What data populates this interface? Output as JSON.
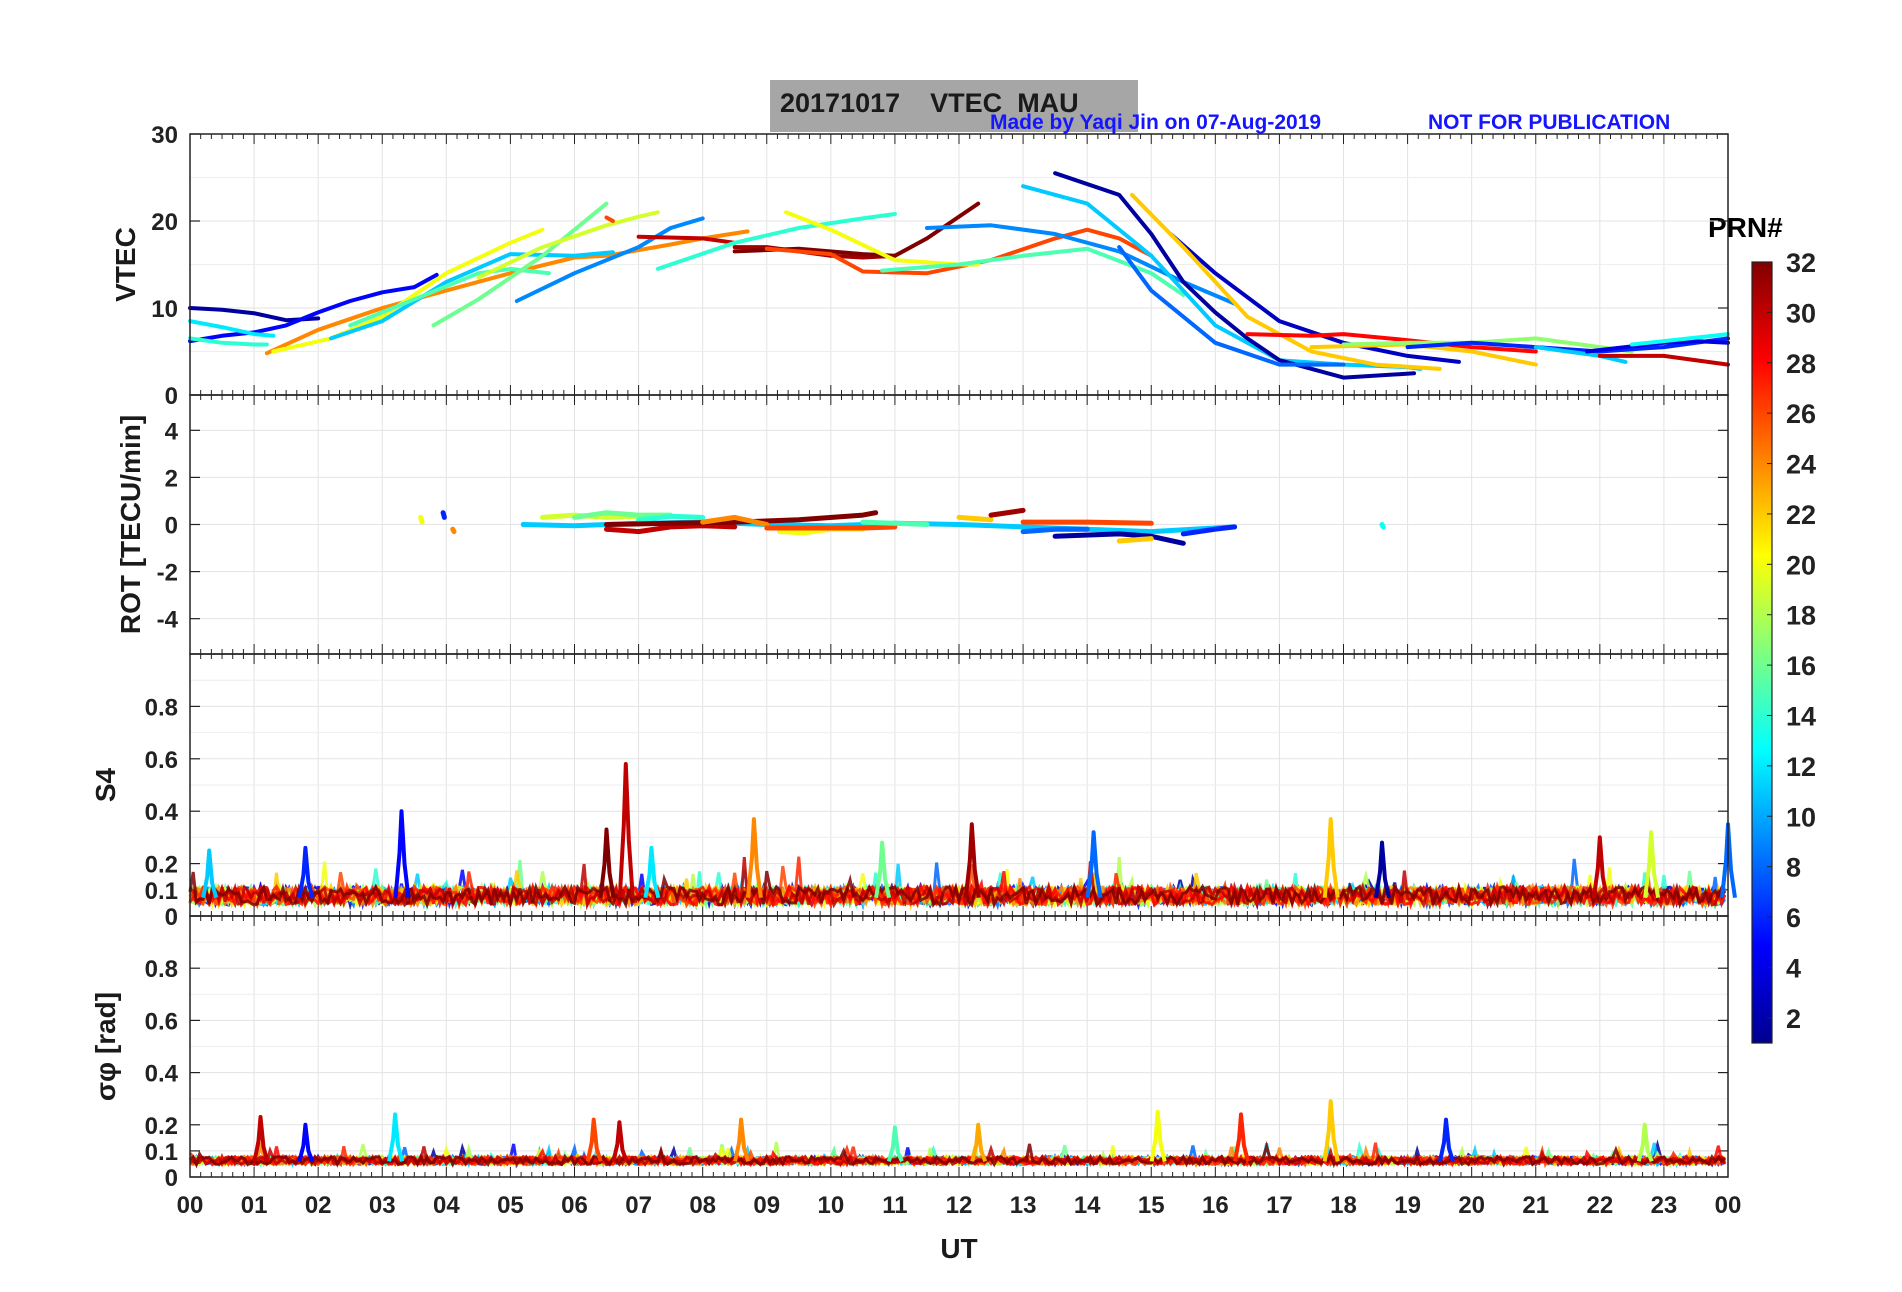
{
  "title": {
    "date": "20171017",
    "product": "VTEC",
    "station": "MAU",
    "credit": "Made by Yaqi Jin on 07-Aug-2019",
    "notice": "NOT FOR PUBLICATION"
  },
  "colorbar": {
    "label": "PRN#",
    "range": [
      1,
      32
    ],
    "ticks": [
      "2",
      "4",
      "6",
      "8",
      "10",
      "12",
      "14",
      "16",
      "18",
      "20",
      "22",
      "24",
      "26",
      "28",
      "30",
      "32"
    ]
  },
  "chart_data": [
    {
      "type": "line",
      "panel": "vtec",
      "ylabel": "VTEC",
      "ylim": [
        0,
        30
      ],
      "yticks": [
        "0",
        "10",
        "20",
        "30"
      ],
      "xlim": [
        0,
        24
      ],
      "series": [
        {
          "prn": 2,
          "x": [
            0.0,
            0.5,
            1.0,
            1.5,
            2.0
          ],
          "y": [
            10.0,
            9.8,
            9.4,
            8.6,
            8.8
          ]
        },
        {
          "prn": 5,
          "x": [
            0.0,
            0.5,
            1.0,
            1.5,
            2.0,
            2.5,
            3.0,
            3.5,
            3.85
          ],
          "y": [
            6.2,
            6.8,
            7.2,
            8.0,
            9.5,
            10.8,
            11.8,
            12.4,
            13.8
          ]
        },
        {
          "prn": 12,
          "x": [
            0.0,
            0.5,
            1.0,
            1.3
          ],
          "y": [
            8.5,
            7.8,
            7.0,
            6.8
          ]
        },
        {
          "prn": 14,
          "x": [
            0.0,
            0.5,
            1.0,
            1.2
          ],
          "y": [
            6.5,
            6.0,
            5.8,
            5.8
          ]
        },
        {
          "prn": 24,
          "x": [
            1.2,
            2.0,
            3.0,
            4.0,
            5.0,
            6.0,
            6.5,
            7.5,
            8.0,
            8.7
          ],
          "y": [
            4.8,
            7.5,
            10.0,
            12.0,
            14.0,
            15.8,
            16.0,
            17.3,
            18.0,
            18.8
          ]
        },
        {
          "prn": 20,
          "x": [
            1.3,
            2.2,
            3.0,
            4.0,
            5.0,
            5.5
          ],
          "y": [
            5.0,
            6.5,
            9.0,
            14.0,
            17.5,
            19.0
          ]
        },
        {
          "prn": 11,
          "x": [
            2.2,
            3.0,
            4.0,
            5.0,
            6.0,
            6.6
          ],
          "y": [
            6.5,
            8.5,
            13.0,
            16.2,
            16.0,
            16.4
          ]
        },
        {
          "prn": 15,
          "x": [
            2.5,
            3.5,
            4.5,
            5.0,
            5.6
          ],
          "y": [
            8.0,
            11.0,
            14.0,
            14.5,
            14.0
          ]
        },
        {
          "prn": 16,
          "x": [
            3.8,
            4.5,
            5.5,
            6.5
          ],
          "y": [
            8.0,
            11.0,
            16.0,
            22.0
          ]
        },
        {
          "prn": 19,
          "x": [
            4.5,
            5.5,
            6.5,
            7.0,
            7.3
          ],
          "y": [
            13.5,
            17.0,
            19.5,
            20.5,
            21.0
          ]
        },
        {
          "prn": 9,
          "x": [
            5.1,
            6.0,
            7.0,
            7.5,
            8.0
          ],
          "y": [
            10.8,
            14.0,
            17.0,
            19.2,
            20.3
          ]
        },
        {
          "prn": 26,
          "x": [
            6.5,
            6.6
          ],
          "y": [
            20.4,
            20.0
          ]
        },
        {
          "prn": 30,
          "x": [
            7.0,
            8.0,
            8.5
          ],
          "y": [
            18.2,
            18.0,
            17.5
          ]
        },
        {
          "prn": 14,
          "x": [
            7.3,
            8.5,
            9.5,
            10.5,
            11.0
          ],
          "y": [
            14.5,
            17.5,
            19.2,
            20.3,
            20.8
          ]
        },
        {
          "prn": 31,
          "x": [
            8.5,
            9.0,
            9.5,
            10.0,
            10.5,
            11.0
          ],
          "y": [
            17.0,
            17.0,
            16.5,
            16.0,
            15.8,
            16.0
          ]
        },
        {
          "prn": 32,
          "x": [
            8.5,
            9.5,
            10.5,
            11.0,
            11.5,
            12.3
          ],
          "y": [
            16.5,
            16.8,
            16.2,
            16.0,
            18.0,
            22.0
          ]
        },
        {
          "prn": 26,
          "x": [
            9.0,
            10.0,
            10.5,
            11.5,
            12.5,
            13.5,
            14.0,
            14.5,
            15.0
          ],
          "y": [
            16.8,
            16.2,
            14.2,
            14.0,
            15.5,
            18.0,
            19.0,
            18.0,
            16.0
          ]
        },
        {
          "prn": 20,
          "x": [
            9.3,
            10.0,
            11.0,
            12.0,
            12.3
          ],
          "y": [
            21.0,
            19.0,
            15.5,
            15.0,
            15.0
          ]
        },
        {
          "prn": 15,
          "x": [
            10.8,
            12.0,
            13.0,
            14.0,
            15.0,
            15.5
          ],
          "y": [
            14.3,
            15.0,
            16.0,
            16.8,
            14.0,
            11.5
          ]
        },
        {
          "prn": 9,
          "x": [
            11.5,
            12.5,
            13.5,
            14.5,
            15.5,
            16.3
          ],
          "y": [
            19.2,
            19.5,
            18.5,
            16.5,
            13.0,
            10.5
          ]
        },
        {
          "prn": 11,
          "x": [
            13.0,
            14.0,
            15.0,
            16.0,
            17.0,
            18.0,
            19.0,
            19.2
          ],
          "y": [
            24.0,
            22.0,
            16.0,
            8.0,
            4.0,
            3.5,
            3.2,
            3.0
          ]
        },
        {
          "prn": 2,
          "x": [
            13.5,
            14.5,
            15.0,
            15.5,
            16.0,
            16.5,
            17.0,
            18.0,
            19.1
          ],
          "y": [
            25.5,
            23.0,
            18.5,
            13.0,
            9.5,
            6.5,
            4.0,
            2.0,
            2.5
          ]
        },
        {
          "prn": 8,
          "x": [
            14.5,
            15.0,
            16.0,
            17.0,
            18.0
          ],
          "y": [
            17.0,
            12.0,
            6.0,
            3.5,
            3.5
          ]
        },
        {
          "prn": 3,
          "x": [
            15.3,
            16.0,
            17.0,
            18.0,
            19.0,
            19.8
          ],
          "y": [
            18.5,
            14.0,
            8.5,
            6.0,
            4.5,
            3.8
          ]
        },
        {
          "prn": 22,
          "x": [
            14.7,
            15.5,
            16.5,
            17.5,
            18.5,
            19.5
          ],
          "y": [
            23.0,
            17.0,
            9.0,
            5.0,
            3.5,
            3.0
          ]
        },
        {
          "prn": 28,
          "x": [
            16.5,
            17.5,
            18.0,
            19.0,
            20.0,
            21.0
          ],
          "y": [
            7.0,
            6.8,
            7.0,
            6.3,
            5.5,
            5.0
          ]
        },
        {
          "prn": 22,
          "x": [
            17.5,
            19.0,
            20.0,
            21.0
          ],
          "y": [
            5.5,
            5.8,
            5.0,
            3.5
          ]
        },
        {
          "prn": 17,
          "x": [
            18.0,
            19.0,
            20.0,
            21.0,
            22.0,
            22.5
          ],
          "y": [
            5.8,
            6.0,
            6.0,
            6.5,
            5.5,
            5.0
          ]
        },
        {
          "prn": 6,
          "x": [
            19.0,
            20.0,
            21.0,
            22.0,
            23.0,
            24.0
          ],
          "y": [
            5.5,
            6.0,
            5.5,
            5.0,
            5.5,
            6.5
          ]
        },
        {
          "prn": 11,
          "x": [
            21.0,
            22.0,
            22.4
          ],
          "y": [
            5.5,
            4.5,
            3.8
          ]
        },
        {
          "prn": 4,
          "x": [
            21.8,
            22.5,
            23.0,
            23.5,
            24.0
          ],
          "y": [
            5.0,
            5.6,
            6.0,
            6.2,
            6.0
          ]
        },
        {
          "prn": 30,
          "x": [
            22.0,
            23.0,
            24.0
          ],
          "y": [
            4.5,
            4.5,
            3.5
          ]
        },
        {
          "prn": 13,
          "x": [
            22.5,
            23.0,
            24.0
          ],
          "y": [
            5.8,
            6.2,
            7.0
          ]
        }
      ]
    },
    {
      "type": "line",
      "panel": "rot",
      "ylabel": "ROT [TECU/min]",
      "ylim": [
        -5.5,
        5.5
      ],
      "yticks": [
        "-4",
        "-2",
        "0",
        "2",
        "4"
      ],
      "xlim": [
        0,
        24
      ],
      "series": [
        {
          "prn": 20,
          "x": [
            3.6,
            3.62
          ],
          "y": [
            0.3,
            0.1
          ]
        },
        {
          "prn": 6,
          "x": [
            3.95,
            3.97
          ],
          "y": [
            0.5,
            0.3
          ]
        },
        {
          "prn": 24,
          "x": [
            4.1,
            4.12
          ],
          "y": [
            -0.2,
            -0.3
          ]
        },
        {
          "prn": 11,
          "x": [
            5.2,
            6.0,
            7.0,
            8.0,
            9.0,
            10.0,
            11.0,
            12.0,
            13.0,
            14.0,
            15.0,
            16.3
          ],
          "y": [
            0.0,
            -0.05,
            0.05,
            0.1,
            0.0,
            -0.05,
            0.05,
            0.0,
            -0.1,
            -0.2,
            -0.3,
            -0.1
          ]
        },
        {
          "prn": 19,
          "x": [
            5.5,
            6.0,
            6.5,
            7.0
          ],
          "y": [
            0.3,
            0.4,
            0.3,
            0.35
          ]
        },
        {
          "prn": 16,
          "x": [
            6.0,
            6.5,
            7.0,
            7.5
          ],
          "y": [
            0.3,
            0.5,
            0.4,
            0.4
          ]
        },
        {
          "prn": 14,
          "x": [
            7.0,
            7.5,
            8.0
          ],
          "y": [
            0.2,
            0.35,
            0.3
          ]
        },
        {
          "prn": 30,
          "x": [
            6.5,
            7.0,
            7.5,
            8.0,
            8.5
          ],
          "y": [
            -0.2,
            -0.3,
            -0.1,
            -0.05,
            -0.1
          ]
        },
        {
          "prn": 32,
          "x": [
            6.5,
            7.5,
            8.5,
            9.5,
            10.5,
            10.7
          ],
          "y": [
            0.0,
            0.05,
            0.1,
            0.2,
            0.4,
            0.5
          ]
        },
        {
          "prn": 24,
          "x": [
            8.0,
            8.5,
            9.0
          ],
          "y": [
            0.1,
            0.3,
            0.0
          ]
        },
        {
          "prn": 20,
          "x": [
            9.2,
            9.6,
            10.0,
            10.5
          ],
          "y": [
            -0.3,
            -0.35,
            -0.2,
            -0.2
          ]
        },
        {
          "prn": 26,
          "x": [
            9.0,
            10.0,
            10.5,
            11.0
          ],
          "y": [
            -0.15,
            -0.15,
            -0.15,
            -0.1
          ]
        },
        {
          "prn": 15,
          "x": [
            10.5,
            11.0,
            11.5
          ],
          "y": [
            0.1,
            0.05,
            0.0
          ]
        },
        {
          "prn": 22,
          "x": [
            12.0,
            12.5
          ],
          "y": [
            0.3,
            0.2
          ]
        },
        {
          "prn": 31,
          "x": [
            12.5,
            13.0
          ],
          "y": [
            0.4,
            0.6
          ]
        },
        {
          "prn": 8,
          "x": [
            13.0,
            13.5,
            14.0
          ],
          "y": [
            -0.3,
            -0.2,
            -0.2
          ]
        },
        {
          "prn": 26,
          "x": [
            13.0,
            14.0,
            15.0
          ],
          "y": [
            0.1,
            0.1,
            0.05
          ]
        },
        {
          "prn": 2,
          "x": [
            13.5,
            14.5,
            15.0,
            15.5
          ],
          "y": [
            -0.5,
            -0.4,
            -0.5,
            -0.8
          ]
        },
        {
          "prn": 22,
          "x": [
            14.5,
            15.0
          ],
          "y": [
            -0.7,
            -0.6
          ]
        },
        {
          "prn": 6,
          "x": [
            15.5,
            16.0,
            16.3
          ],
          "y": [
            -0.4,
            -0.2,
            -0.1
          ]
        },
        {
          "prn": 13,
          "x": [
            18.6,
            18.62
          ],
          "y": [
            0.0,
            -0.1
          ]
        }
      ]
    },
    {
      "type": "line",
      "panel": "s4",
      "ylabel": "S4",
      "ylim": [
        0,
        1.0
      ],
      "yticks": [
        "0",
        "0.1",
        "0.2",
        "0.4",
        "0.6",
        "0.8"
      ],
      "xlim": [
        0,
        24
      ],
      "notes": "noisy multi-PRN series; baseline ~0.05-0.1 with spikes",
      "peaks": [
        {
          "prn": 30,
          "x": 6.8,
          "y": 0.58
        },
        {
          "prn": 5,
          "x": 3.3,
          "y": 0.4
        },
        {
          "prn": 24,
          "x": 8.8,
          "y": 0.37
        },
        {
          "prn": 22,
          "x": 17.8,
          "y": 0.37
        },
        {
          "prn": 31,
          "x": 12.2,
          "y": 0.35
        },
        {
          "prn": 8,
          "x": 24.0,
          "y": 0.35
        },
        {
          "prn": 32,
          "x": 6.5,
          "y": 0.33
        },
        {
          "prn": 8,
          "x": 14.1,
          "y": 0.32
        },
        {
          "prn": 19,
          "x": 22.8,
          "y": 0.32
        },
        {
          "prn": 30,
          "x": 22.0,
          "y": 0.3
        },
        {
          "prn": 16,
          "x": 10.8,
          "y": 0.28
        },
        {
          "prn": 12,
          "x": 7.2,
          "y": 0.26
        },
        {
          "prn": 2,
          "x": 18.6,
          "y": 0.28
        },
        {
          "prn": 6,
          "x": 1.8,
          "y": 0.26
        },
        {
          "prn": 11,
          "x": 0.3,
          "y": 0.25
        }
      ]
    },
    {
      "type": "line",
      "panel": "sigma_phi",
      "ylabel": "σφ [rad]",
      "ylim": [
        0,
        1.0
      ],
      "yticks": [
        "0",
        "0.1",
        "0.2",
        "0.4",
        "0.6",
        "0.8"
      ],
      "xlim": [
        0,
        24
      ],
      "xlabel": "UT",
      "xticks": [
        "00",
        "01",
        "02",
        "03",
        "04",
        "05",
        "06",
        "07",
        "08",
        "09",
        "10",
        "11",
        "12",
        "13",
        "14",
        "15",
        "16",
        "17",
        "18",
        "19",
        "20",
        "21",
        "22",
        "23",
        "00"
      ],
      "notes": "noisy multi-PRN series; baseline ~0.05 with spikes",
      "peaks": [
        {
          "prn": 22,
          "x": 17.8,
          "y": 0.29
        },
        {
          "prn": 20,
          "x": 15.1,
          "y": 0.25
        },
        {
          "prn": 30,
          "x": 1.1,
          "y": 0.23
        },
        {
          "prn": 12,
          "x": 3.2,
          "y": 0.24
        },
        {
          "prn": 27,
          "x": 16.4,
          "y": 0.24
        },
        {
          "prn": 6,
          "x": 19.6,
          "y": 0.22
        },
        {
          "prn": 24,
          "x": 8.6,
          "y": 0.22
        },
        {
          "prn": 26,
          "x": 6.3,
          "y": 0.22
        },
        {
          "prn": 30,
          "x": 6.7,
          "y": 0.21
        },
        {
          "prn": 15,
          "x": 11.0,
          "y": 0.19
        },
        {
          "prn": 18,
          "x": 22.7,
          "y": 0.2
        },
        {
          "prn": 5,
          "x": 1.8,
          "y": 0.2
        },
        {
          "prn": 23,
          "x": 12.3,
          "y": 0.2
        }
      ]
    }
  ]
}
